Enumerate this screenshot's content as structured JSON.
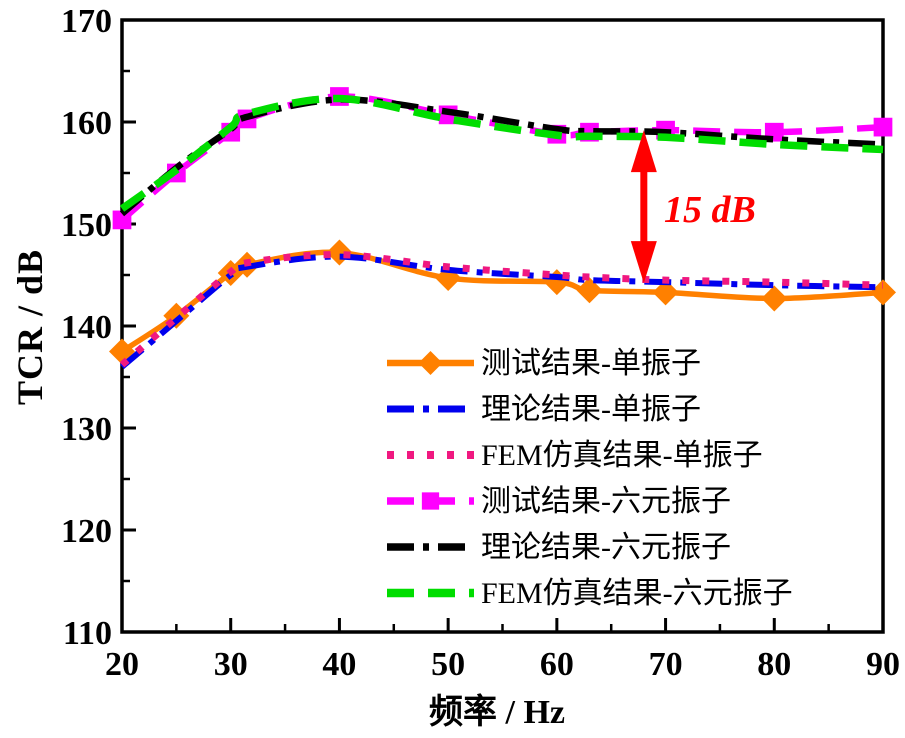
{
  "chart_data": {
    "type": "line",
    "title": "",
    "xlabel": "频率 / Hz",
    "ylabel": "TCR / dB",
    "xlim": [
      20,
      90
    ],
    "ylim": [
      110,
      170
    ],
    "x_major_ticks": [
      20,
      30,
      40,
      50,
      60,
      70,
      80,
      90
    ],
    "x_minor_step": 5,
    "y_major_ticks": [
      110,
      120,
      130,
      140,
      150,
      160,
      170
    ],
    "y_minor_step": 5,
    "grid": false,
    "legend_position": "inside-lower-right",
    "x": [
      20,
      25,
      30,
      31.5,
      40,
      50,
      60,
      63,
      70,
      80,
      90
    ],
    "series": [
      {
        "name": "测试结果-单振子",
        "color": "#FF8000",
        "line": "solid",
        "marker": "diamond",
        "line_width": 5.5,
        "values": [
          137.5,
          141.0,
          145.2,
          146.0,
          147.2,
          144.7,
          144.3,
          143.5,
          143.3,
          142.7,
          143.3
        ]
      },
      {
        "name": "理论结果-单振子",
        "color": "#0000EE",
        "line": "dashdot",
        "marker": "none",
        "line_width": 6,
        "values": [
          136.0,
          140.5,
          145.0,
          145.8,
          146.8,
          145.5,
          144.8,
          144.5,
          144.3,
          144.0,
          143.8
        ]
      },
      {
        "name": "FEM仿真结果-单振子",
        "color": "#F01880",
        "line": "dotted",
        "marker": "none",
        "line_width": 7,
        "values": [
          136.2,
          140.8,
          145.3,
          146.2,
          147.0,
          145.8,
          145.0,
          144.8,
          144.5,
          144.3,
          144.0
        ]
      },
      {
        "name": "测试结果-六元振子",
        "color": "#FF00FF",
        "line": "dashed",
        "marker": "square",
        "line_width": 6.5,
        "values": [
          150.4,
          155.0,
          159.0,
          160.3,
          162.5,
          160.7,
          158.8,
          159.0,
          159.2,
          159.0,
          159.5
        ]
      },
      {
        "name": "理论结果-六元振子",
        "color": "#000000",
        "line": "dashdot",
        "marker": "none",
        "line_width": 6.5,
        "values": [
          151.0,
          155.5,
          159.3,
          160.5,
          162.2,
          161.0,
          159.3,
          159.1,
          159.0,
          158.3,
          157.8
        ]
      },
      {
        "name": "FEM仿真结果-六元振子",
        "color": "#00DD00",
        "line": "dashed",
        "marker": "none",
        "line_width": 7.5,
        "values": [
          151.5,
          155.3,
          159.5,
          160.8,
          162.3,
          160.3,
          158.7,
          158.6,
          158.5,
          157.8,
          157.3
        ]
      }
    ],
    "annotation": {
      "text": "15 dB",
      "color": "#FF0000",
      "x": 68,
      "y_from": 144.2,
      "y_to": 159.2
    }
  }
}
